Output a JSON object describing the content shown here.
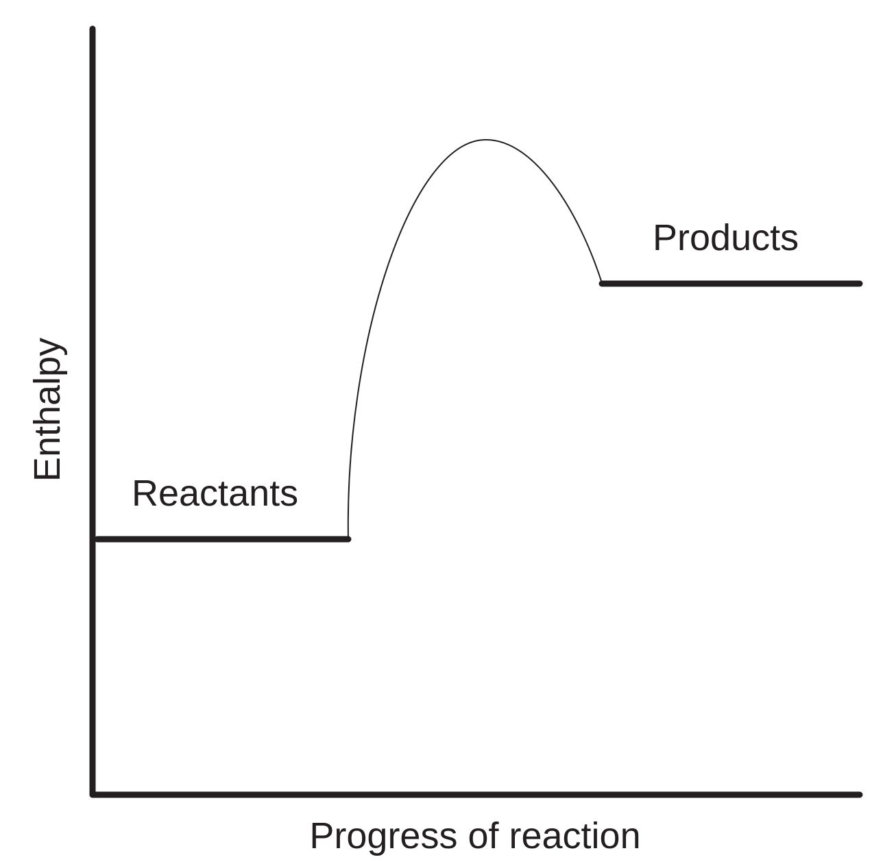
{
  "diagram": {
    "type": "enthalpy-profile",
    "y_axis_label": "Enthalpy",
    "x_axis_label": "Progress of reaction",
    "reactants_label": "Reactants",
    "products_label": "Products",
    "line_color": "#231f20"
  }
}
